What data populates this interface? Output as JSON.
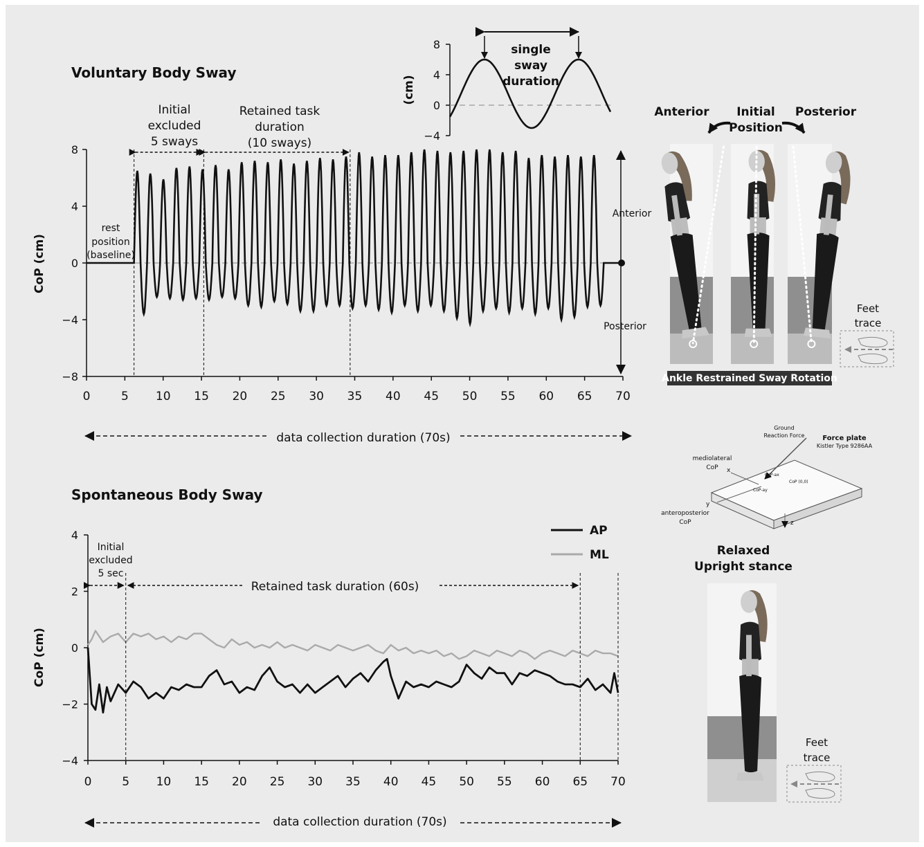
{
  "chart_data": [
    {
      "type": "line",
      "title": "Voluntary Body Sway",
      "xlabel": "",
      "ylabel": "CoP (cm)",
      "xlim": [
        0,
        70
      ],
      "ylim": [
        -8,
        8
      ],
      "xticks": [
        0,
        5,
        10,
        15,
        20,
        25,
        30,
        35,
        40,
        45,
        50,
        55,
        60,
        65,
        70
      ],
      "yticks": [
        8,
        4,
        0,
        -4,
        -8
      ],
      "ytick_labels": [
        "8",
        "4",
        "0",
        "−4",
        "−8"
      ],
      "grid": false,
      "annotations": {
        "rest": [
          "rest",
          "position",
          "(baseline)"
        ],
        "initial": [
          "Initial",
          "excluded",
          "5 sways"
        ],
        "retained": [
          "Retained task",
          "duration",
          "(10 sways)"
        ],
        "anterior": "Anterior",
        "posterior": "Posterior",
        "duration": "data collection duration (70s)"
      },
      "series": [
        {
          "x": [
            0,
            6,
            34.4,
            68,
            70
          ],
          "baseline": 0,
          "sway_peaks": [
            6.5,
            6.3,
            5.9,
            6.7,
            6.8,
            6.6,
            6.9,
            6.6,
            7.1,
            7.2,
            7.1,
            7.3,
            7.0,
            7.2,
            7.4,
            7.3,
            7.5,
            7.8,
            7.5,
            7.6,
            7.6,
            7.8,
            8.0,
            7.9,
            7.8,
            7.9,
            8.0,
            8.0,
            7.8,
            7.9,
            7.4,
            7.6,
            7.5,
            7.6,
            7.5,
            7.6
          ],
          "sway_troughs": [
            -3.6,
            -2.4,
            -2.5,
            -2.6,
            -2.5,
            -2.6,
            -2.4,
            -2.5,
            -3.0,
            -3.1,
            -2.7,
            -2.9,
            -3.4,
            -3.4,
            -3.0,
            -3.0,
            -3.2,
            -3.0,
            -3.3,
            -3.5,
            -3.0,
            -3.4,
            -3.0,
            -3.4,
            -3.9,
            -4.3,
            -3.4,
            -3.2,
            -3.5,
            -3.2,
            -3.6,
            -3.2,
            -4.0,
            -3.8,
            -3.1,
            -3.0
          ],
          "sway_start": 6.2,
          "sway_end": 67.5
        }
      ]
    },
    {
      "type": "line",
      "title": "",
      "xlabel": "",
      "ylabel": "(cm)",
      "ylim": [
        -4,
        8
      ],
      "yticks": [
        8,
        4,
        0,
        -4
      ],
      "ytick_labels": [
        "8",
        "4",
        "0",
        "−4"
      ],
      "annotations": {
        "single_sway": [
          "single",
          "sway",
          "duration"
        ]
      },
      "series": [
        {
          "amplitude": 4.5,
          "offset": 1.5
        }
      ]
    },
    {
      "type": "line",
      "title": "Spontaneous Body Sway",
      "xlabel": "",
      "ylabel": "CoP (cm)",
      "xlim": [
        0,
        70
      ],
      "ylim": [
        -4,
        4
      ],
      "xticks": [
        0,
        5,
        10,
        15,
        20,
        25,
        30,
        35,
        40,
        45,
        50,
        55,
        60,
        65,
        70
      ],
      "yticks": [
        4,
        2,
        0,
        -2,
        -4
      ],
      "ytick_labels": [
        "4",
        "2",
        "0",
        "−2",
        "−4"
      ],
      "legend": "top-right",
      "grid": false,
      "annotations": {
        "initial": [
          "Initial",
          "excluded",
          "5 sec"
        ],
        "retained": "Retained task duration (60s)",
        "duration": "data collection duration (70s)"
      },
      "series": [
        {
          "name": "AP",
          "color": "#111111",
          "x": [
            0,
            0.5,
            1,
            1.5,
            2,
            2.5,
            3,
            4,
            5,
            6,
            7,
            8,
            9,
            10,
            11,
            12,
            13,
            14,
            15,
            16,
            17,
            18,
            19,
            20,
            21,
            22,
            23,
            24,
            25,
            26,
            27,
            28,
            29,
            30,
            31,
            32,
            33,
            34,
            35,
            36,
            37,
            38,
            39,
            39.5,
            40,
            41,
            42,
            43,
            44,
            45,
            46,
            47,
            48,
            49,
            50,
            51,
            52,
            53,
            54,
            55,
            56,
            57,
            58,
            59,
            60,
            61,
            62,
            63,
            64,
            65,
            66,
            67,
            68,
            69,
            69.5,
            70
          ],
          "y": [
            0,
            -2.0,
            -2.2,
            -1.3,
            -2.3,
            -1.4,
            -1.9,
            -1.3,
            -1.6,
            -1.2,
            -1.4,
            -1.8,
            -1.6,
            -1.8,
            -1.4,
            -1.5,
            -1.3,
            -1.4,
            -1.4,
            -1.0,
            -0.8,
            -1.3,
            -1.2,
            -1.6,
            -1.4,
            -1.5,
            -1.0,
            -0.7,
            -1.2,
            -1.4,
            -1.3,
            -1.6,
            -1.3,
            -1.6,
            -1.4,
            -1.2,
            -1.0,
            -1.4,
            -1.1,
            -0.9,
            -1.2,
            -0.8,
            -0.5,
            -0.4,
            -1.0,
            -1.8,
            -1.2,
            -1.4,
            -1.3,
            -1.4,
            -1.2,
            -1.3,
            -1.4,
            -1.2,
            -0.6,
            -0.9,
            -1.1,
            -0.7,
            -0.9,
            -0.9,
            -1.3,
            -0.9,
            -1.0,
            -0.8,
            -0.9,
            -1.0,
            -1.2,
            -1.3,
            -1.3,
            -1.4,
            -1.1,
            -1.5,
            -1.3,
            -1.6,
            -0.9,
            -1.6
          ]
        },
        {
          "name": "ML",
          "color": "#aaaaaa",
          "x": [
            0,
            0.5,
            1,
            1.5,
            2,
            3,
            4,
            5,
            6,
            7,
            8,
            9,
            10,
            11,
            12,
            13,
            14,
            15,
            16,
            17,
            18,
            19,
            20,
            21,
            22,
            23,
            24,
            25,
            26,
            27,
            28,
            29,
            30,
            31,
            32,
            33,
            34,
            35,
            36,
            37,
            38,
            39,
            40,
            41,
            42,
            43,
            44,
            45,
            46,
            47,
            48,
            49,
            50,
            51,
            52,
            53,
            54,
            55,
            56,
            57,
            58,
            59,
            60,
            61,
            62,
            63,
            64,
            65,
            66,
            67,
            68,
            69,
            70
          ],
          "y": [
            0.1,
            0.3,
            0.6,
            0.4,
            0.2,
            0.4,
            0.5,
            0.2,
            0.5,
            0.4,
            0.5,
            0.3,
            0.4,
            0.2,
            0.4,
            0.3,
            0.5,
            0.5,
            0.3,
            0.1,
            0.0,
            0.3,
            0.1,
            0.2,
            0.0,
            0.1,
            0.0,
            0.2,
            0.0,
            0.1,
            0.0,
            -0.1,
            0.1,
            0.0,
            -0.1,
            0.1,
            0.0,
            -0.1,
            0.0,
            0.1,
            -0.1,
            -0.2,
            0.1,
            -0.1,
            0.0,
            -0.2,
            -0.1,
            -0.2,
            -0.1,
            -0.3,
            -0.2,
            -0.4,
            -0.3,
            -0.1,
            -0.2,
            -0.3,
            -0.1,
            -0.2,
            -0.3,
            -0.1,
            -0.2,
            -0.4,
            -0.2,
            -0.1,
            -0.2,
            -0.3,
            -0.1,
            -0.2,
            -0.3,
            -0.1,
            -0.2,
            -0.2,
            -0.3
          ]
        }
      ]
    }
  ],
  "figures": {
    "voluntary": {
      "anterior": "Anterior",
      "initial_position": [
        "Initial",
        "Position"
      ],
      "posterior": "Posterior",
      "feet_trace": [
        "Feet",
        "trace"
      ],
      "caption": "Ankle Restrained Sway Rotation"
    },
    "force_plate": {
      "ground_reaction": [
        "Ground",
        "Reaction Force"
      ],
      "title": "Force plate",
      "subtitle": "Kistler Type 9286AA",
      "ml": [
        "mediolateral",
        "CoP"
      ],
      "ap": [
        "anteroposterior",
        "CoP"
      ],
      "cop_ax": "CoP-ax",
      "cop_ay": "CoP-ay",
      "cop_origin": "CoP (0,0)",
      "x": "x",
      "y": "y",
      "z": "z"
    },
    "spontaneous": {
      "stance": [
        "Relaxed",
        "Upright stance"
      ],
      "feet_trace": [
        "Feet",
        "trace"
      ]
    }
  }
}
